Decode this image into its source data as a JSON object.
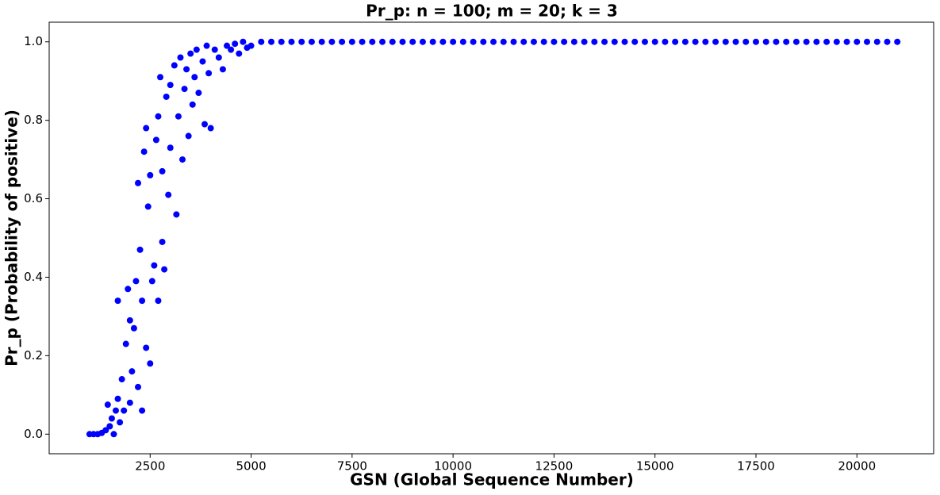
{
  "chart_data": {
    "type": "scatter",
    "title": "Pr_p: n = 100; m = 20; k = 3",
    "x_label": "GSN (Global Sequence Number)",
    "y_label": "Pr_p (Probability of positive)",
    "color": "#0000ff",
    "xlim": [
      0,
      21900
    ],
    "ylim": [
      -0.05,
      1.05
    ],
    "xticks": [
      2500,
      5000,
      7500,
      10000,
      12500,
      15000,
      17500,
      20000
    ],
    "yticks": [
      {
        "value": 0,
        "label": "0.0"
      },
      0.2,
      0.4,
      0.6,
      0.8,
      {
        "value": 1,
        "label": "1.0"
      }
    ],
    "x": [
      1000,
      1100,
      1200,
      1300,
      1400,
      1450,
      1500,
      1550,
      1600,
      1650,
      1700,
      1700,
      1750,
      1800,
      1850,
      1900,
      1950,
      2000,
      2000,
      2050,
      2100,
      2150,
      2200,
      2200,
      2250,
      2300,
      2300,
      2350,
      2400,
      2400,
      2450,
      2500,
      2500,
      2550,
      2600,
      2650,
      2700,
      2700,
      2750,
      2800,
      2800,
      2850,
      2900,
      2950,
      3000,
      3000,
      3100,
      3150,
      3200,
      3250,
      3300,
      3350,
      3400,
      3450,
      3500,
      3550,
      3600,
      3650,
      3700,
      3800,
      3850,
      3900,
      3950,
      4000,
      4100,
      4200,
      4300,
      4400,
      4500,
      4600,
      4700,
      4800,
      4900,
      5000,
      5250,
      5500,
      5750,
      6000,
      6250,
      6500,
      6750,
      7000,
      7250,
      7500,
      7750,
      8000,
      8250,
      8500,
      8750,
      9000,
      9250,
      9500,
      9750,
      10000,
      10250,
      10500,
      10750,
      11000,
      11250,
      11500,
      11750,
      12000,
      12250,
      12500,
      12750,
      13000,
      13250,
      13500,
      13750,
      14000,
      14250,
      14500,
      14750,
      15000,
      15250,
      15500,
      15750,
      16000,
      16250,
      16500,
      16750,
      17000,
      17250,
      17500,
      17750,
      18000,
      18250,
      18500,
      18750,
      19000,
      19250,
      19500,
      19750,
      20000,
      20250,
      20500,
      20750,
      21000
    ],
    "values": [
      0,
      0,
      0,
      0.003,
      0.01,
      0.075,
      0.02,
      0.04,
      0,
      0.06,
      0.09,
      0.34,
      0.03,
      0.14,
      0.06,
      0.23,
      0.37,
      0.08,
      0.29,
      0.16,
      0.27,
      0.39,
      0.12,
      0.64,
      0.47,
      0.34,
      0.06,
      0.72,
      0.78,
      0.22,
      0.58,
      0.18,
      0.66,
      0.39,
      0.43,
      0.75,
      0.81,
      0.34,
      0.91,
      0.49,
      0.67,
      0.42,
      0.86,
      0.61,
      0.89,
      0.73,
      0.94,
      0.56,
      0.81,
      0.96,
      0.7,
      0.88,
      0.93,
      0.76,
      0.97,
      0.84,
      0.91,
      0.98,
      0.87,
      0.95,
      0.79,
      0.99,
      0.92,
      0.78,
      0.98,
      0.96,
      0.93,
      0.99,
      0.98,
      0.995,
      0.97,
      1,
      0.985,
      0.99,
      1,
      1,
      1,
      1,
      1,
      1,
      1,
      1,
      1,
      1,
      1,
      1,
      1,
      1,
      1,
      1,
      1,
      1,
      1,
      1,
      1,
      1,
      1,
      1,
      1,
      1,
      1,
      1,
      1,
      1,
      1,
      1,
      1,
      1,
      1,
      1,
      1,
      1,
      1,
      1,
      1,
      1,
      1,
      1,
      1,
      1,
      1,
      1,
      1,
      1,
      1,
      1,
      1,
      1,
      1,
      1,
      1,
      1,
      1,
      1,
      1,
      1,
      1,
      1
    ]
  }
}
